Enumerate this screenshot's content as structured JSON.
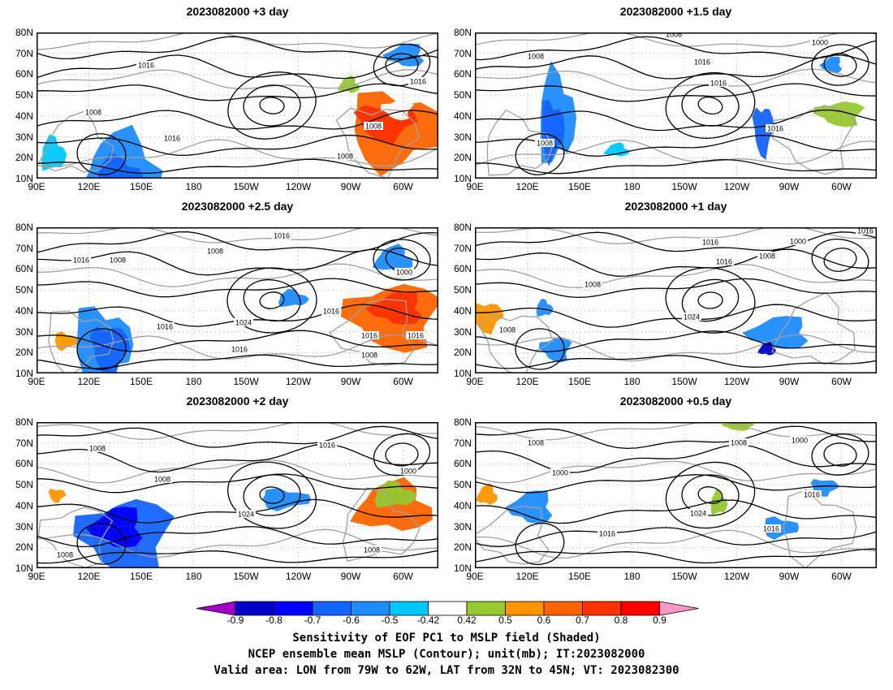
{
  "panels": [
    {
      "title": "2023082000  +3 day"
    },
    {
      "title": "2023082000  +1.5 day"
    },
    {
      "title": "2023082000  +2.5 day"
    },
    {
      "title": "2023082000  +1 day"
    },
    {
      "title": "2023082000  +2 day"
    },
    {
      "title": "2023082000  +0.5 day"
    }
  ],
  "lat_ticks": [
    "80N",
    "70N",
    "60N",
    "50N",
    "40N",
    "30N",
    "20N",
    "10N"
  ],
  "lon_ticks": [
    "90E",
    "120E",
    "150E",
    "180",
    "150W",
    "120W",
    "90W",
    "60W"
  ],
  "contour_labels": {
    "p0": [
      "1016",
      "1008",
      "1016",
      "1016",
      "1008",
      "1008"
    ],
    "p1": [
      "1008",
      "1008",
      "1016",
      "1016",
      "1000",
      "1016",
      "1008"
    ],
    "p2": [
      "1016",
      "1008",
      "1008",
      "1016",
      "1016",
      "1024",
      "1016",
      "1016",
      "1016",
      "1000",
      "1016",
      "1008"
    ],
    "p3": [
      "1008",
      "1008",
      "1016",
      "1016",
      "1024",
      "1000",
      "1008",
      "1016"
    ],
    "p4": [
      "1008",
      "1008",
      "1008",
      "1024",
      "1016",
      "1000",
      "1008"
    ],
    "p5": [
      "1008",
      "1000",
      "1008",
      "1000",
      "1016",
      "1024",
      "1016",
      "1016"
    ]
  },
  "colorbar": {
    "labels": [
      "-0.9",
      "-0.8",
      "-0.7",
      "-0.6",
      "-0.5",
      "-0.42",
      "0.42",
      "0.5",
      "0.6",
      "0.7",
      "0.8",
      "0.9"
    ],
    "colors": [
      "#a000c8",
      "#0000c8",
      "#0000ff",
      "#1464ff",
      "#1e8cff",
      "#00c8ff",
      "#ffffff",
      "#96c832",
      "#ff9600",
      "#ff6400",
      "#ff3200",
      "#ff0000",
      "#ff96c8"
    ]
  },
  "caption": {
    "line1": "Sensitivity of EOF PC1 to MSLP field (Shaded)",
    "line2": "NCEP ensemble mean MSLP (Contour); unit(mb); IT:2023082000",
    "line3": "Valid area: LON from 79W to 62W, LAT from 32N to 45N; VT: 2023082300"
  }
}
